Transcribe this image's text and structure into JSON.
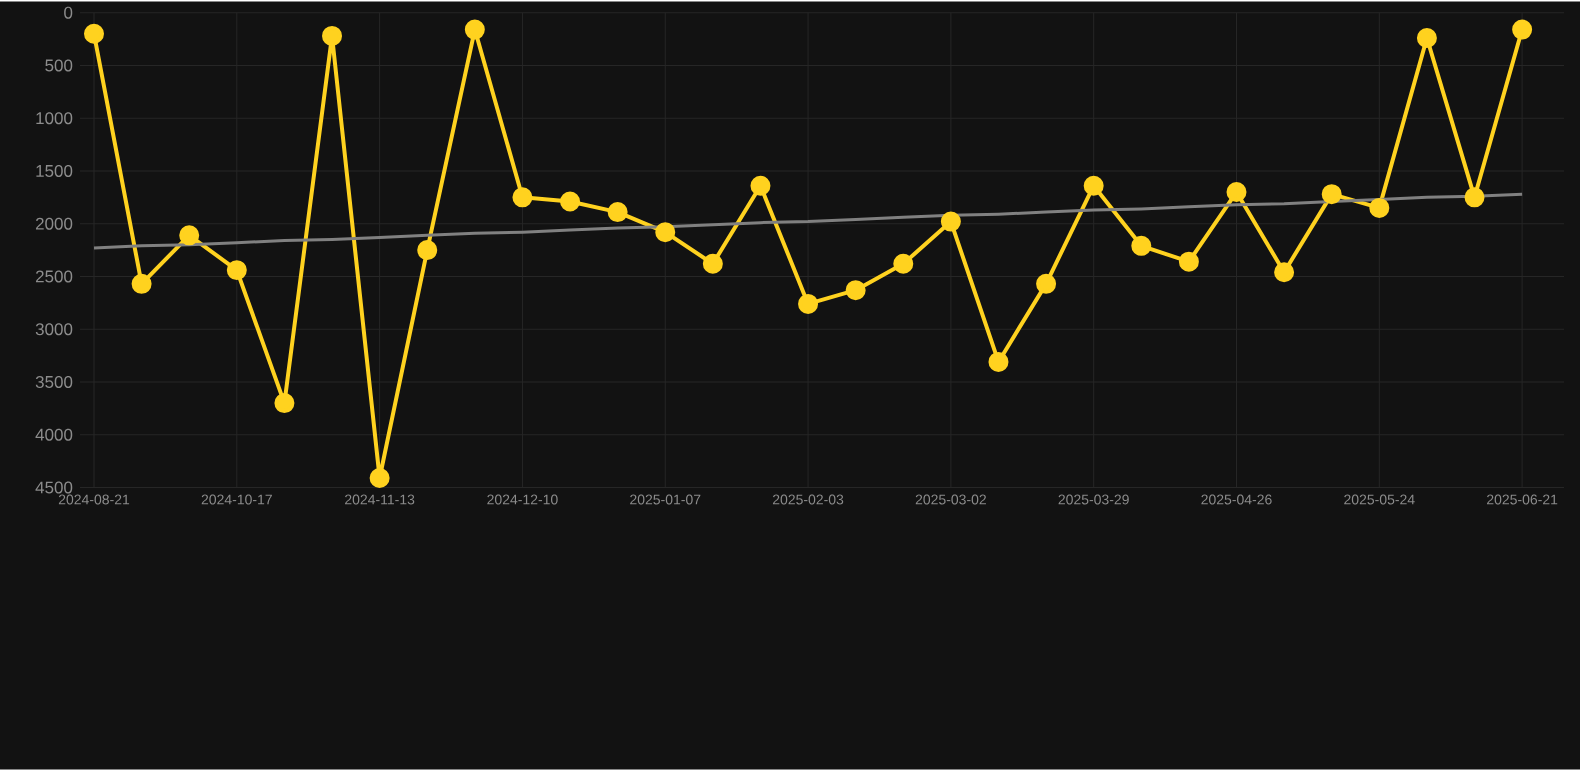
{
  "chart_data": {
    "type": "line",
    "categories": [
      "2024-08-21",
      null,
      null,
      "2024-10-17",
      null,
      null,
      "2024-11-13",
      null,
      null,
      "2024-12-10",
      null,
      null,
      "2025-01-07",
      null,
      null,
      "2025-02-03",
      null,
      null,
      "2025-03-02",
      null,
      null,
      "2025-03-29",
      null,
      null,
      "2025-04-26",
      null,
      null,
      "2025-05-24",
      null,
      null,
      "2025-06-21"
    ],
    "series": [
      {
        "color": "#ffd21f",
        "marker": "circle",
        "values": [
          200,
          2570,
          2110,
          2440,
          3700,
          220,
          4410,
          2250,
          160,
          1750,
          1790,
          1890,
          2080,
          2380,
          1640,
          2760,
          2630,
          2380,
          1980,
          3310,
          2570,
          1640,
          2210,
          2360,
          1700,
          2460,
          1720,
          1850,
          240,
          1750,
          160
        ]
      },
      {
        "color": "#808080",
        "marker": "none",
        "values": [
          2230,
          2210,
          2200,
          2180,
          2160,
          2150,
          2130,
          2110,
          2090,
          2080,
          2060,
          2040,
          2030,
          2010,
          1990,
          1980,
          1960,
          1940,
          1920,
          1910,
          1890,
          1870,
          1860,
          1840,
          1820,
          1810,
          1790,
          1770,
          1750,
          1740,
          1720
        ]
      }
    ],
    "ylim": [
      4500,
      0
    ],
    "yticks": [
      0,
      500,
      1000,
      1500,
      2000,
      2500,
      3000,
      3500,
      4000,
      4500
    ],
    "grid": true
  }
}
